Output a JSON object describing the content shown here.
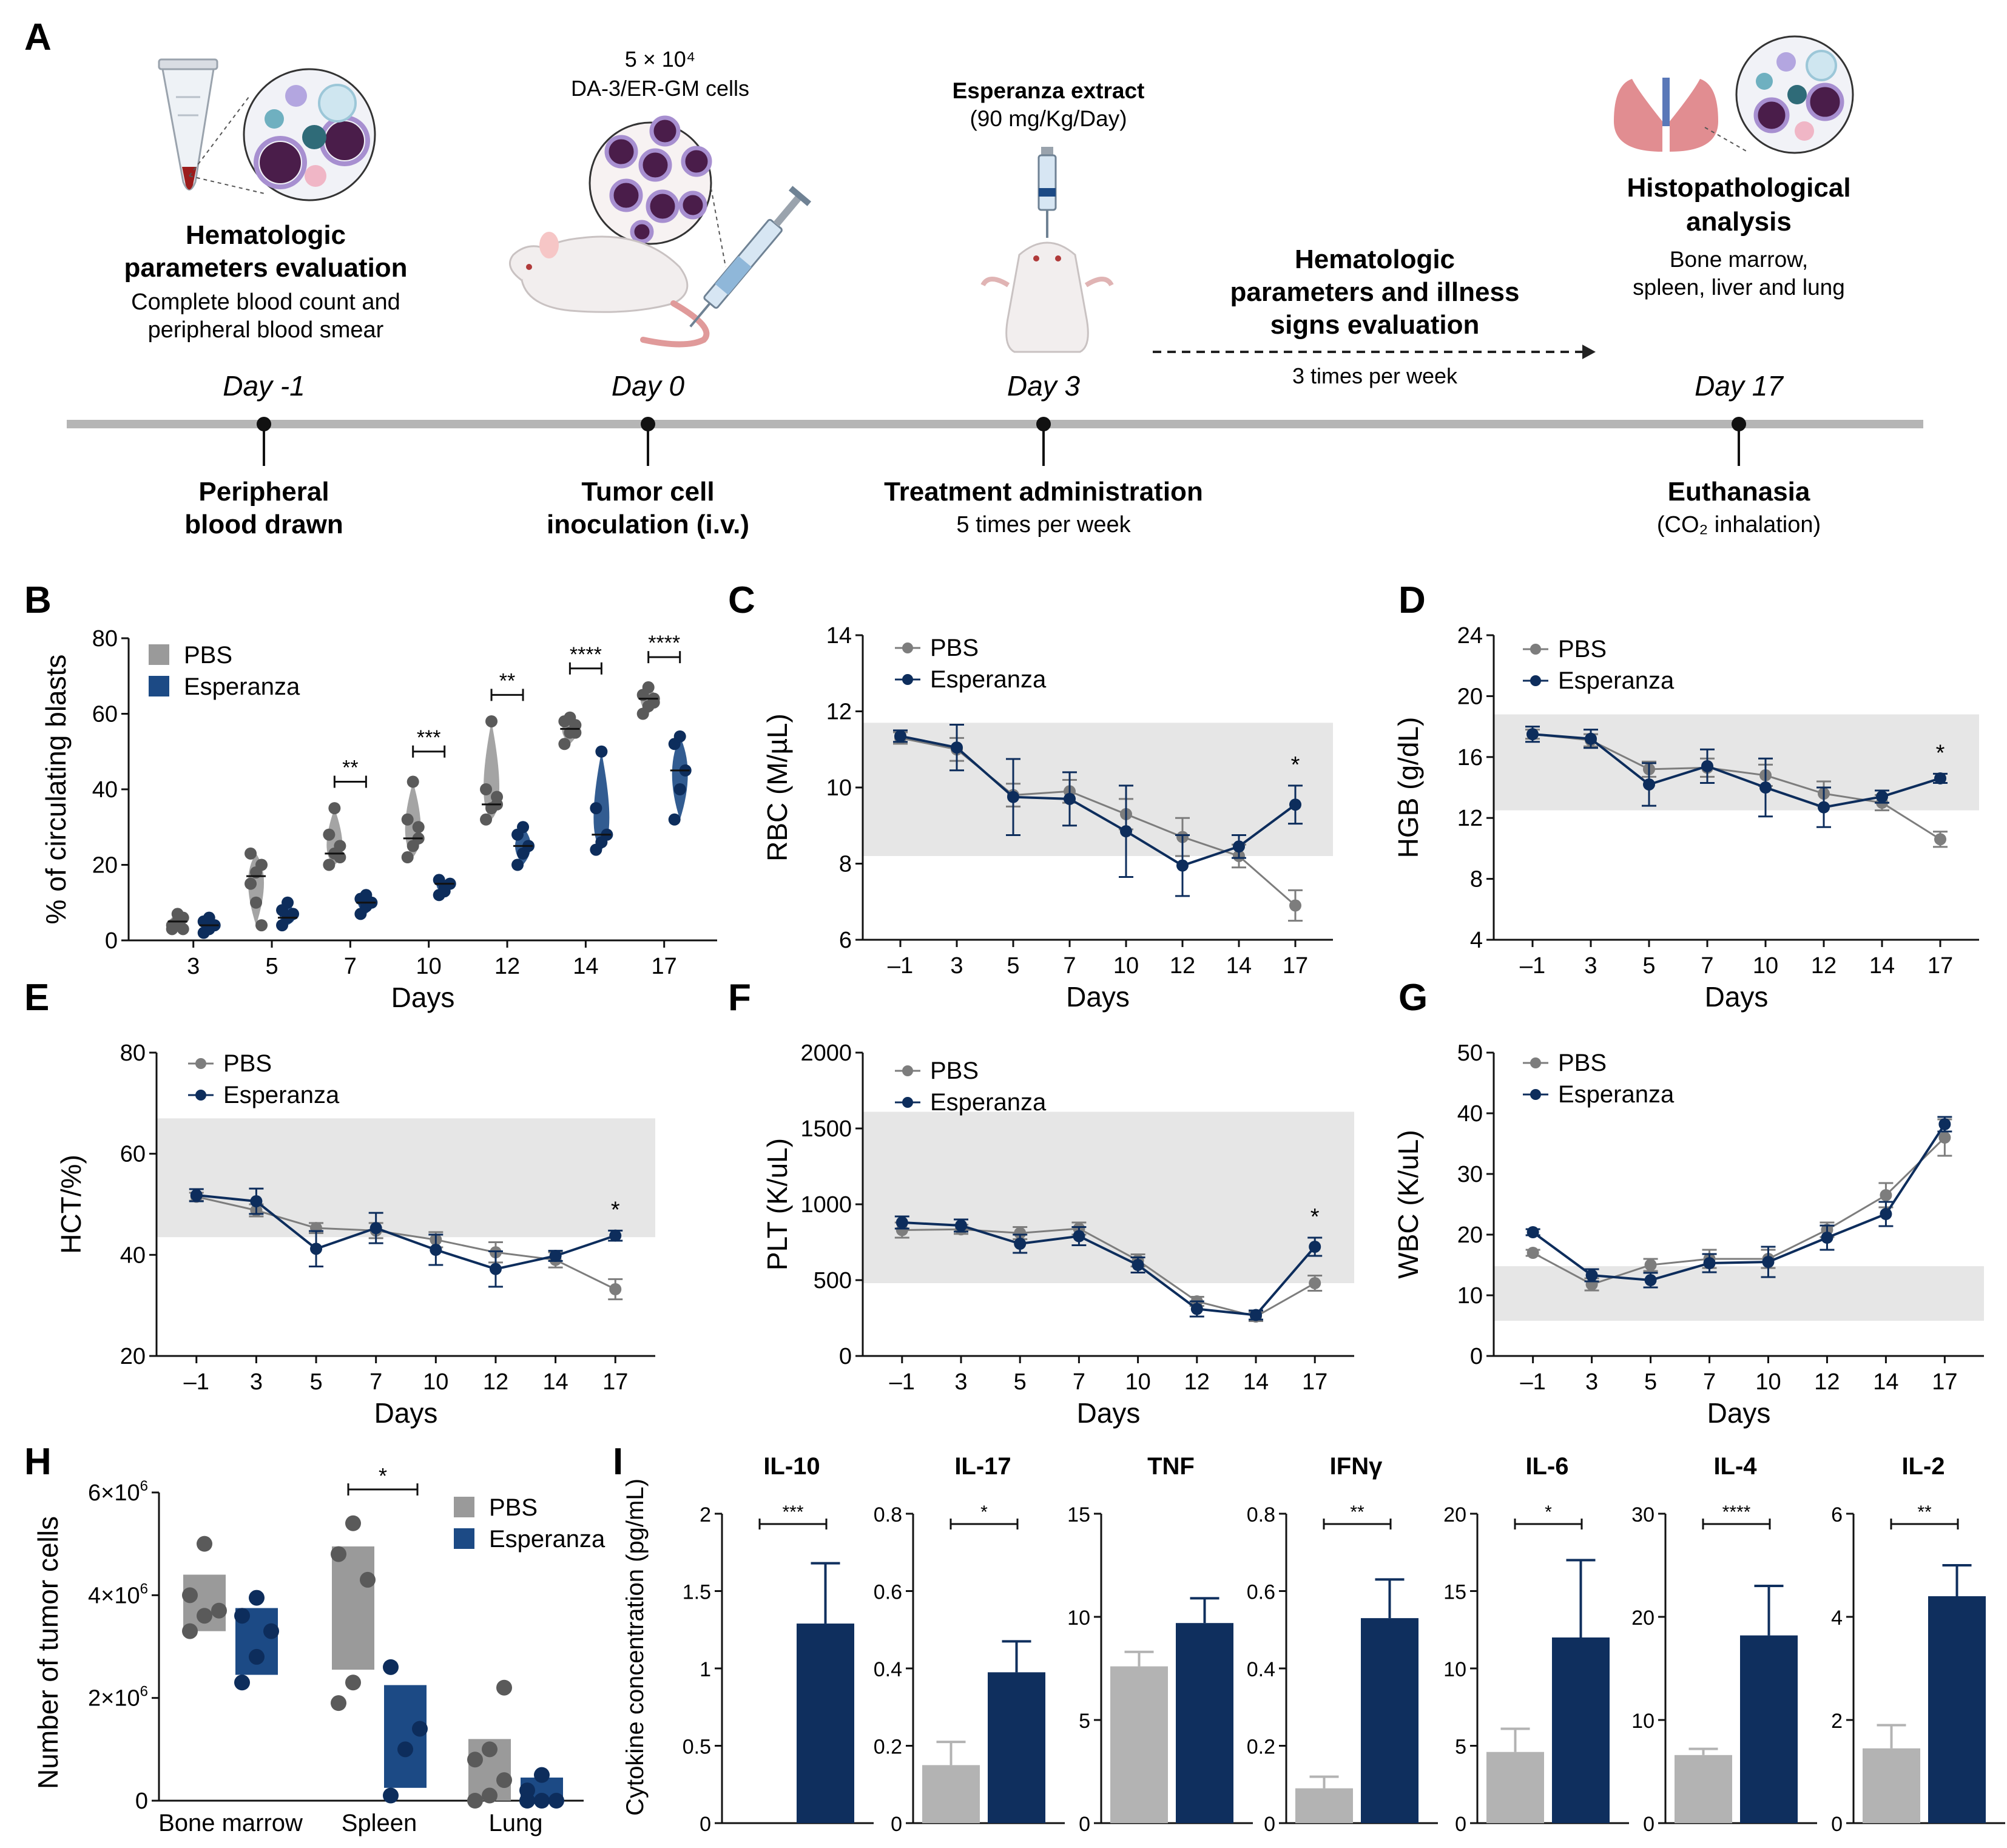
{
  "colors": {
    "pbs": "#7d7d7d",
    "esp": "#0d2d5c",
    "pbs_fill": "#9a9a9a",
    "esp_fill": "#1c4a85",
    "bar_pbs": "#b3b3b3",
    "bar_esp": "#0f2f5e",
    "range": "#e6e6e6",
    "timeline": "#b5b5b5"
  },
  "panel_a": {
    "letter": "A",
    "hema_title": [
      "Hematologic",
      "parameters evaluation"
    ],
    "hema_sub": [
      "Complete blood count and",
      "peripheral blood smear"
    ],
    "cells_count": "5 × 10⁴",
    "cells_name": "DA-3/ER-GM cells",
    "extract_title": "Esperanza extract",
    "extract_dose": "(90 mg/Kg/Day)",
    "eval_title": [
      "Hematologic",
      "parameters and illness",
      "signs evaluation"
    ],
    "eval_freq": "3 times per week",
    "histo_title": [
      "Histopathological",
      "analysis"
    ],
    "histo_sub": [
      "Bone marrow,",
      "spleen, liver and lung"
    ],
    "days": [
      "Day -1",
      "Day 0",
      "Day 3",
      "Day 17"
    ],
    "events": [
      {
        "lines": [
          "Peripheral",
          "blood drawn"
        ],
        "sub": ""
      },
      {
        "lines": [
          "Tumor cell",
          "inoculation (i.v.)"
        ],
        "sub": ""
      },
      {
        "lines": [
          "Treatment administration"
        ],
        "sub": "5 times per week"
      },
      {
        "lines": [
          "Euthanasia"
        ],
        "sub": "(CO₂ inhalation)"
      }
    ],
    "icons": [
      "blood-tube-icon",
      "blood-cells-icon",
      "mouse-icon",
      "syringe-icon",
      "tumor-cells-icon",
      "mouse-injection-icon",
      "lungs-icon",
      "histology-cells-icon"
    ]
  },
  "chart_data": [
    {
      "id": "B",
      "type": "violin",
      "title": "",
      "xlabel": "Days",
      "ylabel": "% of circulating blasts",
      "ylim": [
        0,
        80
      ],
      "yticks": [
        "0",
        "20",
        "40",
        "60",
        "80"
      ],
      "categories": [
        "3",
        "5",
        "7",
        "10",
        "12",
        "14",
        "17"
      ],
      "legend": [
        "PBS",
        "Esperanza"
      ],
      "series": [
        {
          "name": "PBS",
          "points": [
            [
              3,
              5,
              6,
              4,
              7,
              3
            ],
            [
              15,
              18,
              20,
              23,
              10,
              4
            ],
            [
              20,
              23,
              25,
              28,
              35,
              22
            ],
            [
              22,
              25,
              30,
              32,
              42,
              27
            ],
            [
              32,
              35,
              38,
              40,
              58,
              36
            ],
            [
              52,
              55,
              57,
              58,
              59,
              55
            ],
            [
              60,
              62,
              64,
              65,
              67,
              63
            ]
          ],
          "medians": [
            5,
            17,
            23,
            27,
            36,
            56,
            64
          ]
        },
        {
          "name": "Esperanza",
          "points": [
            [
              2,
              3,
              4,
              5,
              6
            ],
            [
              4,
              6,
              7,
              8,
              10
            ],
            [
              7,
              9,
              10,
              11,
              12
            ],
            [
              12,
              14,
              15,
              16,
              13
            ],
            [
              20,
              23,
              25,
              28,
              30
            ],
            [
              24,
              26,
              28,
              35,
              50
            ],
            [
              32,
              40,
              45,
              52,
              54
            ]
          ],
          "medians": [
            4,
            6,
            10,
            15,
            25,
            28,
            45
          ]
        }
      ],
      "significance": [
        {
          "category": "7",
          "label": "**",
          "y": 42
        },
        {
          "category": "10",
          "label": "***",
          "y": 50
        },
        {
          "category": "12",
          "label": "**",
          "y": 65
        },
        {
          "category": "14",
          "label": "****",
          "y": 72
        },
        {
          "category": "17",
          "label": "****",
          "y": 75
        }
      ]
    },
    {
      "id": "C",
      "type": "line",
      "xlabel": "Days",
      "ylabel": "RBC (M/µL)",
      "ylim": [
        6,
        14
      ],
      "yticks": [
        "6",
        "8",
        "10",
        "12",
        "14"
      ],
      "categories": [
        "–1",
        "3",
        "5",
        "7",
        "10",
        "12",
        "14",
        "17"
      ],
      "legend": [
        "PBS",
        "Esperanza"
      ],
      "range": [
        8.2,
        11.7
      ],
      "series": [
        {
          "name": "PBS",
          "values": [
            11.3,
            11.0,
            9.8,
            9.9,
            9.3,
            8.7,
            8.2,
            6.9
          ],
          "errors": [
            0.15,
            0.3,
            0.3,
            0.3,
            0.4,
            0.5,
            0.3,
            0.4
          ]
        },
        {
          "name": "Esperanza",
          "values": [
            11.35,
            11.05,
            9.75,
            9.7,
            8.85,
            7.95,
            8.45,
            9.55
          ],
          "errors": [
            0.15,
            0.6,
            1.0,
            0.7,
            1.2,
            0.8,
            0.3,
            0.5
          ]
        }
      ],
      "significance": [
        {
          "category": "17",
          "label": "*"
        }
      ]
    },
    {
      "id": "D",
      "type": "line",
      "xlabel": "Days",
      "ylabel": "HGB (g/dL)",
      "ylim": [
        4,
        24
      ],
      "yticks": [
        "4",
        "8",
        "12",
        "16",
        "20",
        "24"
      ],
      "categories": [
        "–1",
        "3",
        "5",
        "7",
        "10",
        "12",
        "14",
        "17"
      ],
      "legend": [
        "PBS",
        "Esperanza"
      ],
      "range": [
        12.5,
        18.8
      ],
      "series": [
        {
          "name": "PBS",
          "values": [
            17.5,
            17.1,
            15.2,
            15.3,
            14.8,
            13.6,
            13.0,
            10.6
          ],
          "errors": [
            0.3,
            0.4,
            0.5,
            0.6,
            0.7,
            0.8,
            0.5,
            0.5
          ]
        },
        {
          "name": "Esperanza",
          "values": [
            17.5,
            17.2,
            14.2,
            15.4,
            14.0,
            12.7,
            13.4,
            14.6
          ],
          "errors": [
            0.5,
            0.6,
            1.4,
            1.1,
            1.9,
            1.3,
            0.4,
            0.3
          ]
        }
      ],
      "significance": [
        {
          "category": "17",
          "label": "*"
        }
      ]
    },
    {
      "id": "E",
      "type": "line",
      "xlabel": "Days",
      "ylabel": "HCT/%)",
      "ylim": [
        20,
        80
      ],
      "yticks": [
        "20",
        "40",
        "60",
        "80"
      ],
      "categories": [
        "–1",
        "3",
        "5",
        "7",
        "10",
        "12",
        "14",
        "17"
      ],
      "legend": [
        "PBS",
        "Esperanza"
      ],
      "range": [
        43.5,
        67
      ],
      "series": [
        {
          "name": "PBS",
          "values": [
            51.5,
            48.8,
            45.3,
            44.8,
            43.0,
            40.5,
            39.0,
            33.2
          ],
          "errors": [
            0.8,
            1.2,
            1.0,
            1.5,
            1.5,
            2.0,
            1.5,
            2.0
          ]
        },
        {
          "name": "Esperanza",
          "values": [
            51.8,
            50.6,
            41.2,
            45.3,
            41.0,
            37.2,
            39.8,
            43.8
          ],
          "errors": [
            1.2,
            2.5,
            3.5,
            3.0,
            3.0,
            3.5,
            1.0,
            1.0
          ]
        }
      ],
      "significance": [
        {
          "category": "17",
          "label": "*"
        }
      ]
    },
    {
      "id": "F",
      "type": "line",
      "xlabel": "Days",
      "ylabel": "PLT (K/uL)",
      "ylim": [
        0,
        2000
      ],
      "yticks": [
        "0",
        "500",
        "1000",
        "1500",
        "2000"
      ],
      "categories": [
        "–1",
        "3",
        "5",
        "7",
        "10",
        "12",
        "14",
        "17"
      ],
      "legend": [
        "PBS",
        "Esperanza"
      ],
      "range": [
        480,
        1610
      ],
      "series": [
        {
          "name": "PBS",
          "values": [
            830,
            835,
            810,
            840,
            630,
            360,
            260,
            480
          ],
          "errors": [
            50,
            30,
            40,
            40,
            40,
            30,
            30,
            50
          ]
        },
        {
          "name": "Esperanza",
          "values": [
            880,
            860,
            740,
            790,
            600,
            310,
            270,
            720
          ],
          "errors": [
            40,
            40,
            60,
            60,
            50,
            50,
            30,
            60
          ]
        }
      ],
      "significance": [
        {
          "category": "17",
          "label": "*"
        }
      ]
    },
    {
      "id": "G",
      "type": "line",
      "xlabel": "Days",
      "ylabel": "WBC (K/uL)",
      "ylim": [
        0,
        50
      ],
      "yticks": [
        "0",
        "10",
        "20",
        "30",
        "40",
        "50"
      ],
      "categories": [
        "–1",
        "3",
        "5",
        "7",
        "10",
        "12",
        "14",
        "17"
      ],
      "legend": [
        "PBS",
        "Esperanza"
      ],
      "range": [
        5.8,
        14.8
      ],
      "series": [
        {
          "name": "PBS",
          "values": [
            17.0,
            11.8,
            15.0,
            16.0,
            16.0,
            20.8,
            26.5,
            36.0
          ],
          "errors": [
            0.5,
            1.0,
            1.0,
            1.5,
            1.5,
            1.2,
            2.0,
            3.0
          ]
        },
        {
          "name": "Esperanza",
          "values": [
            20.4,
            13.3,
            12.5,
            15.3,
            15.5,
            19.5,
            23.4,
            38.2
          ],
          "errors": [
            0.5,
            1.0,
            1.2,
            1.5,
            2.5,
            2.0,
            2.0,
            1.2
          ]
        }
      ],
      "significance": []
    },
    {
      "id": "H",
      "type": "floating-bar",
      "xlabel": "",
      "ylabel": "Number of tumor cells",
      "ylim": [
        0,
        6000000
      ],
      "yticks": [
        {
          "m": "0",
          "e": ""
        },
        {
          "m": "2×10",
          "e": "6"
        },
        {
          "m": "4×10",
          "e": "6"
        },
        {
          "m": "6×10",
          "e": "6"
        }
      ],
      "categories": [
        "Bone marrow",
        "Spleen",
        "Lung"
      ],
      "legend": [
        "PBS",
        "Esperanza"
      ],
      "series": [
        {
          "name": "PBS",
          "low": [
            3300000,
            2550000,
            0
          ],
          "high": [
            4400000,
            4950000,
            1200000
          ],
          "points": [
            [
              3300000,
              3600000,
              3700000,
              4000000,
              5000000
            ],
            [
              1900000,
              2300000,
              4300000,
              4800000,
              5400000
            ],
            [
              0,
              100000,
              400000,
              800000,
              1000000,
              2200000
            ]
          ]
        },
        {
          "name": "Esperanza",
          "low": [
            2450000,
            250000,
            0
          ],
          "high": [
            3750000,
            2250000,
            450000
          ],
          "points": [
            [
              2300000,
              2800000,
              3300000,
              3600000,
              3950000
            ],
            [
              100000,
              1000000,
              1400000,
              2600000
            ],
            [
              0,
              0,
              0,
              200000,
              500000
            ]
          ]
        }
      ],
      "significance": [
        {
          "category": "Spleen",
          "label": "*"
        }
      ]
    },
    {
      "id": "I",
      "type": "bar",
      "ylabel": "Cytokine concentration (pg/mL)",
      "legend": [
        "PBS",
        "Esperanza"
      ],
      "panels": [
        {
          "title": "IL-10",
          "ylim": [
            0,
            2
          ],
          "yticks": [
            "0",
            "0.5",
            "1",
            "1.5",
            "2"
          ],
          "values": [
            0,
            1.29
          ],
          "errors": [
            0,
            0.39
          ],
          "sig": "***"
        },
        {
          "title": "IL-17",
          "ylim": [
            0,
            0.8
          ],
          "yticks": [
            "0",
            "0.2",
            "0.4",
            "0.6",
            "0.8"
          ],
          "values": [
            0.15,
            0.39
          ],
          "errors": [
            0.06,
            0.08
          ],
          "sig": "*"
        },
        {
          "title": "TNF",
          "ylim": [
            0,
            15
          ],
          "yticks": [
            "0",
            "5",
            "10",
            "15"
          ],
          "values": [
            7.6,
            9.7
          ],
          "errors": [
            0.7,
            1.2
          ],
          "sig": ""
        },
        {
          "title": "IFNγ",
          "ylim": [
            0,
            0.8
          ],
          "yticks": [
            "0",
            "0.2",
            "0.4",
            "0.6",
            "0.8"
          ],
          "values": [
            0.09,
            0.53
          ],
          "errors": [
            0.03,
            0.1
          ],
          "sig": "**"
        },
        {
          "title": "IL-6",
          "ylim": [
            0,
            20
          ],
          "yticks": [
            "0",
            "5",
            "10",
            "15",
            "20"
          ],
          "values": [
            4.6,
            12.0
          ],
          "errors": [
            1.5,
            5.0
          ],
          "sig": "*"
        },
        {
          "title": "IL-4",
          "ylim": [
            0,
            30
          ],
          "yticks": [
            "0",
            "10",
            "20",
            "30"
          ],
          "values": [
            6.6,
            18.2
          ],
          "errors": [
            0.6,
            4.8
          ],
          "sig": "****"
        },
        {
          "title": "IL-2",
          "ylim": [
            0,
            6
          ],
          "yticks": [
            "0",
            "2",
            "4",
            "6"
          ],
          "values": [
            1.45,
            4.4
          ],
          "errors": [
            0.45,
            0.6
          ],
          "sig": "**"
        }
      ]
    }
  ]
}
